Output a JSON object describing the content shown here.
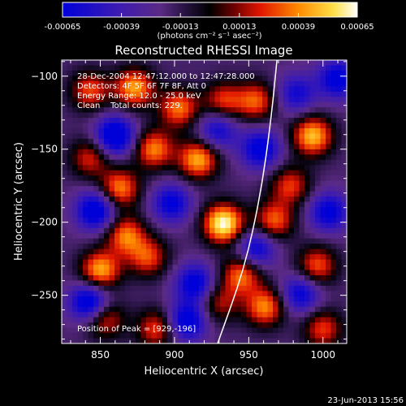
{
  "chart_data": {
    "type": "heatmap",
    "title": "Reconstructed RHESSI Image",
    "xlabel": "Heliocentric X (arcsec)",
    "ylabel": "Heliocentric Y (arcsec)",
    "colorbar": {
      "ticks": [
        "-0.00065",
        "-0.00039",
        "-0.00013",
        "0.00013",
        "0.00039",
        "0.00065"
      ],
      "tick_values": [
        -0.00065,
        -0.00039,
        -0.00013,
        0.00013,
        0.00039,
        0.00065
      ],
      "range": [
        -0.00065,
        0.00065
      ],
      "units_label": "(photons cm⁻² s⁻¹ asec⁻²)"
    },
    "xlim": [
      824,
      1016
    ],
    "ylim": [
      -283,
      -89
    ],
    "x_ticks": [
      850,
      900,
      950,
      1000
    ],
    "y_ticks": [
      -100,
      -150,
      -200,
      -250
    ],
    "x_tick_labels": [
      "850",
      "900",
      "950",
      "1000"
    ],
    "y_tick_labels": [
      "−100",
      "−150",
      "−200",
      "−250"
    ],
    "annotations": {
      "time": "28-Dec-2004 12:47:12.000 to 12:47:28.000",
      "detectors": "Detectors: 4F 5F 6F 7F 8F, Att 0",
      "energy": "Energy Range: 12.0 - 25.0 keV",
      "clean": "Clean    Total counts: 229.",
      "peak": "Position of Peak = [929,-196]"
    },
    "peak": [
      929,
      -196
    ],
    "blobs": [
      {
        "x": 933,
        "y": -201,
        "value": 0.00065
      },
      {
        "x": 916,
        "y": -157,
        "value": 0.00046
      },
      {
        "x": 903,
        "y": -122,
        "value": 0.00036
      },
      {
        "x": 873,
        "y": -108,
        "value": 0.00043
      },
      {
        "x": 886,
        "y": -150,
        "value": 0.00038
      },
      {
        "x": 863,
        "y": -177,
        "value": 0.00039
      },
      {
        "x": 843,
        "y": -156,
        "value": 0.00023
      },
      {
        "x": 843,
        "y": -110,
        "value": 0.00028
      },
      {
        "x": 867,
        "y": -209,
        "value": 0.00036
      },
      {
        "x": 882,
        "y": -224,
        "value": 0.00028
      },
      {
        "x": 850,
        "y": -233,
        "value": 0.00046
      },
      {
        "x": 853,
        "y": -266,
        "value": 0.00028
      },
      {
        "x": 888,
        "y": -273,
        "value": 0.00028
      },
      {
        "x": 930,
        "y": -255,
        "value": 0.00018
      },
      {
        "x": 945,
        "y": -236,
        "value": 0.00036
      },
      {
        "x": 961,
        "y": -258,
        "value": 0.00039
      },
      {
        "x": 967,
        "y": -199,
        "value": 0.00033
      },
      {
        "x": 978,
        "y": -175,
        "value": 0.00026
      },
      {
        "x": 993,
        "y": -141,
        "value": 0.00049
      },
      {
        "x": 996,
        "y": -230,
        "value": 0.00031
      },
      {
        "x": 1000,
        "y": -273,
        "value": 0.00026
      },
      {
        "x": 955,
        "y": -117,
        "value": 0.00031
      },
      {
        "x": 933,
        "y": -117,
        "value": 0.00026
      },
      {
        "x": 860,
        "y": -141,
        "value": -0.00049
      },
      {
        "x": 847,
        "y": -192,
        "value": -0.00044
      },
      {
        "x": 898,
        "y": -187,
        "value": -0.00031
      },
      {
        "x": 929,
        "y": -137,
        "value": -0.00026
      },
      {
        "x": 958,
        "y": -150,
        "value": -0.00036
      },
      {
        "x": 955,
        "y": -218,
        "value": -0.00031
      },
      {
        "x": 914,
        "y": -242,
        "value": -0.00036
      },
      {
        "x": 843,
        "y": -255,
        "value": -0.00049
      },
      {
        "x": 908,
        "y": -268,
        "value": -0.00041
      },
      {
        "x": 985,
        "y": -249,
        "value": -0.00031
      },
      {
        "x": 1004,
        "y": -193,
        "value": -0.00033
      },
      {
        "x": 1010,
        "y": -102,
        "value": -0.00036
      },
      {
        "x": 982,
        "y": -112,
        "value": -0.00023
      }
    ],
    "limb_curve": [
      [
        929,
        -283
      ],
      [
        947,
        -232
      ],
      [
        958,
        -181
      ],
      [
        965,
        -130
      ],
      [
        969,
        -89
      ]
    ]
  },
  "footer": {
    "date": "23-Jun-2013 15:56"
  }
}
